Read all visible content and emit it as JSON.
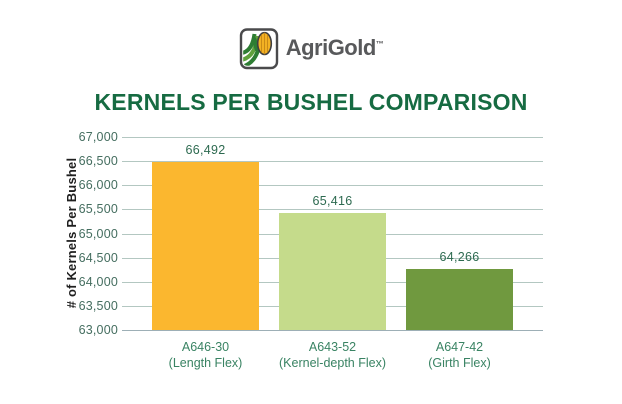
{
  "logo": {
    "brand": "AgriGold",
    "trademark": "™",
    "text_color": "#58595B"
  },
  "title": {
    "text": "KERNELS PER BUSHEL COMPARISON",
    "color": "#166B42"
  },
  "chart_data": {
    "type": "bar",
    "title": "KERNELS PER BUSHEL COMPARISON",
    "xlabel": "",
    "ylabel": "# of Kernels Per Bushel",
    "ylim": [
      63000,
      67000
    ],
    "ytick_step": 500,
    "ytick_labels": [
      "63,000",
      "63,500",
      "64,000",
      "64,500",
      "65,000",
      "65,500",
      "66,000",
      "66,500",
      "67,000"
    ],
    "grid": true,
    "legend_position": "none",
    "categories": [
      "A646-30",
      "A643-52",
      "A647-42"
    ],
    "category_sublabels": [
      "(Length Flex)",
      "(Kernel-depth Flex)",
      "(Girth Flex)"
    ],
    "values": [
      66492,
      65416,
      64266
    ],
    "value_labels": [
      "66,492",
      "65,416",
      "64,266"
    ],
    "bar_colors": [
      "#FBB72F",
      "#C5DB8B",
      "#70993F"
    ]
  },
  "style": {
    "gridline_color": "#B3C7C1",
    "baseline_color": "#9DAFB6",
    "tick_label_color": "#456E60",
    "value_label_color": "#2D6A50",
    "category_label_color": "#398363",
    "axis_title_color": "#1F1F1F",
    "logo_corn_yellow": "#F5B324",
    "logo_leaf_green": "#2E7D33",
    "logo_band_green": "#5FA13C"
  }
}
